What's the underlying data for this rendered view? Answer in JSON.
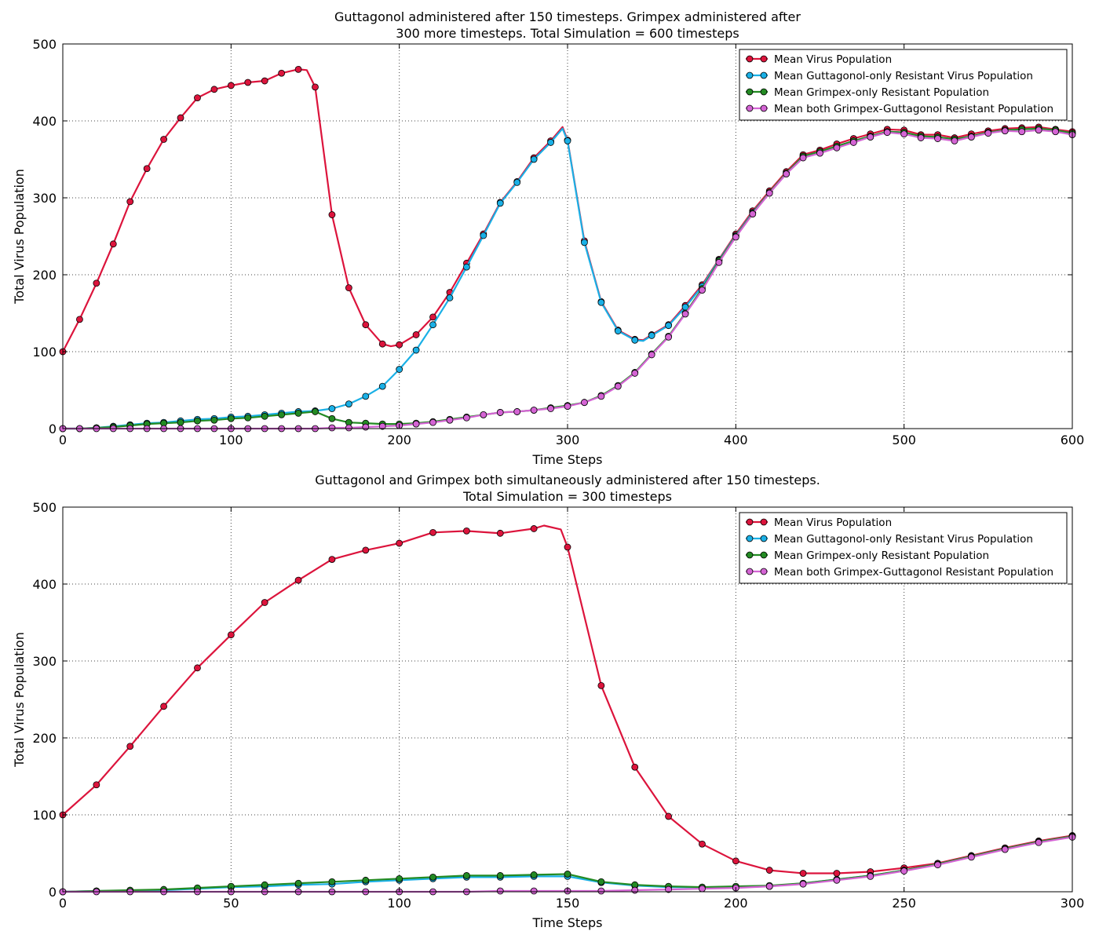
{
  "colors": {
    "virus": "#dc143c",
    "guttagonol": "#1ab0e6",
    "grimpex": "#238b23",
    "both": "#d464d4"
  },
  "chart_data": [
    {
      "type": "line",
      "title": [
        "Guttagonol administered after 150 timesteps. Grimpex administered after",
        "300 more timesteps. Total Simulation = 600 timesteps"
      ],
      "xlabel": "Time Steps",
      "ylabel": "Total Virus Population",
      "xlim": [
        0,
        600
      ],
      "ylim": [
        0,
        500
      ],
      "xticks": [
        0,
        100,
        200,
        300,
        400,
        500,
        600
      ],
      "yticks": [
        0,
        100,
        200,
        300,
        400,
        500
      ],
      "grid": true,
      "legend_position": "top-right",
      "series": [
        {
          "name": "Mean Virus Population",
          "color_key": "virus",
          "x": [
            0,
            10,
            20,
            30,
            40,
            50,
            60,
            70,
            80,
            90,
            100,
            110,
            120,
            130,
            140,
            145,
            150,
            160,
            170,
            180,
            190,
            195,
            200,
            210,
            220,
            230,
            240,
            250,
            260,
            270,
            280,
            290,
            297,
            300,
            310,
            320,
            330,
            340,
            345,
            350,
            360,
            370,
            380,
            390,
            400,
            410,
            420,
            430,
            440,
            450,
            460,
            470,
            480,
            490,
            500,
            510,
            520,
            530,
            540,
            550,
            560,
            570,
            580,
            590,
            600
          ],
          "y": [
            100,
            142,
            189,
            240,
            295,
            338,
            376,
            404,
            430,
            441,
            446,
            450,
            452,
            462,
            467,
            466,
            444,
            278,
            183,
            135,
            110,
            107,
            109,
            122,
            145,
            177,
            215,
            253,
            294,
            321,
            352,
            374,
            392,
            375,
            244,
            165,
            128,
            116,
            115,
            122,
            135,
            160,
            187,
            220,
            253,
            283,
            309,
            334,
            356,
            362,
            370,
            377,
            383,
            389,
            388,
            382,
            382,
            378,
            383,
            387,
            390,
            391,
            392,
            389,
            386
          ]
        },
        {
          "name": "Mean Guttagonol-only Resistant Virus Population",
          "color_key": "guttagonol",
          "x": [
            0,
            10,
            20,
            30,
            40,
            50,
            60,
            70,
            80,
            90,
            100,
            110,
            120,
            130,
            140,
            150,
            160,
            170,
            180,
            190,
            200,
            210,
            220,
            230,
            240,
            250,
            260,
            270,
            280,
            290,
            297,
            300,
            310,
            320,
            330,
            340,
            345,
            350,
            360,
            370,
            380,
            390,
            400,
            410,
            420,
            430,
            440,
            450,
            460,
            470,
            480,
            490,
            500,
            510,
            520,
            530,
            540,
            550,
            560,
            570,
            580,
            590,
            600
          ],
          "y": [
            0,
            0,
            1,
            3,
            5,
            7,
            8,
            10,
            12,
            13,
            15,
            16,
            18,
            20,
            22,
            23,
            26,
            32,
            42,
            55,
            77,
            102,
            135,
            170,
            210,
            251,
            293,
            320,
            350,
            372,
            390,
            374,
            242,
            164,
            127,
            115,
            114,
            121,
            134,
            158,
            185,
            219,
            251,
            281,
            307,
            332,
            354,
            360,
            367,
            374,
            380,
            386,
            385,
            380,
            379,
            376,
            380,
            385,
            388,
            389,
            390,
            388,
            384
          ]
        },
        {
          "name": "Mean Grimpex-only Resistant Population",
          "color_key": "grimpex",
          "x": [
            0,
            10,
            20,
            30,
            40,
            50,
            60,
            70,
            80,
            90,
            100,
            110,
            120,
            130,
            140,
            150,
            160,
            170,
            180,
            190,
            200,
            210,
            220,
            230,
            240,
            250,
            260,
            270,
            280,
            290,
            300,
            310,
            320,
            330,
            340,
            350,
            360,
            370,
            380,
            390,
            400,
            410,
            420,
            430,
            440,
            450,
            460,
            470,
            480,
            490,
            500,
            510,
            520,
            530,
            540,
            550,
            560,
            570,
            580,
            590,
            600
          ],
          "y": [
            0,
            0,
            1,
            2,
            4,
            6,
            7,
            8,
            10,
            11,
            13,
            14,
            16,
            18,
            20,
            22,
            13,
            8,
            7,
            6,
            6,
            7,
            9,
            12,
            15,
            18,
            21,
            22,
            24,
            27,
            30,
            34,
            43,
            56,
            73,
            97,
            120,
            150,
            182,
            218,
            250,
            280,
            307,
            332,
            354,
            360,
            367,
            374,
            380,
            386,
            385,
            380,
            379,
            376,
            380,
            385,
            388,
            389,
            390,
            388,
            384
          ]
        },
        {
          "name": "Mean both Grimpex-Guttagonol Resistant Population",
          "color_key": "both",
          "x": [
            0,
            10,
            20,
            30,
            40,
            50,
            60,
            70,
            80,
            90,
            100,
            110,
            120,
            130,
            140,
            150,
            160,
            170,
            180,
            190,
            200,
            210,
            220,
            230,
            240,
            250,
            260,
            270,
            280,
            290,
            300,
            310,
            320,
            330,
            340,
            350,
            360,
            370,
            380,
            390,
            400,
            410,
            420,
            430,
            440,
            450,
            460,
            470,
            480,
            490,
            500,
            510,
            520,
            530,
            540,
            550,
            560,
            570,
            580,
            590,
            600
          ],
          "y": [
            0,
            0,
            0,
            0,
            0,
            0,
            0,
            0,
            0,
            0,
            0,
            0,
            0,
            0,
            0,
            0,
            1,
            1,
            2,
            3,
            4,
            6,
            8,
            11,
            14,
            18,
            21,
            22,
            24,
            26,
            29,
            34,
            42,
            55,
            72,
            96,
            119,
            149,
            180,
            216,
            249,
            279,
            306,
            331,
            352,
            358,
            365,
            372,
            379,
            385,
            383,
            378,
            377,
            374,
            379,
            384,
            387,
            386,
            388,
            386,
            382
          ]
        }
      ]
    },
    {
      "type": "line",
      "title": [
        "Guttagonol and Grimpex both simultaneously administered after 150 timesteps.",
        "Total Simulation = 300 timesteps"
      ],
      "xlabel": "Time Steps",
      "ylabel": "Total Virus Population",
      "xlim": [
        0,
        300
      ],
      "ylim": [
        0,
        500
      ],
      "xticks": [
        0,
        50,
        100,
        150,
        200,
        250,
        300
      ],
      "yticks": [
        0,
        100,
        200,
        300,
        400,
        500
      ],
      "grid": true,
      "legend_position": "top-right",
      "series": [
        {
          "name": "Mean Virus Population",
          "color_key": "virus",
          "x": [
            0,
            10,
            20,
            30,
            40,
            50,
            60,
            70,
            80,
            90,
            100,
            110,
            120,
            130,
            140,
            143,
            148,
            150,
            160,
            170,
            180,
            190,
            200,
            210,
            220,
            230,
            240,
            250,
            260,
            270,
            280,
            290,
            300
          ],
          "y": [
            100,
            139,
            189,
            241,
            291,
            334,
            376,
            405,
            432,
            444,
            453,
            467,
            469,
            466,
            472,
            476,
            471,
            448,
            268,
            162,
            98,
            62,
            40,
            28,
            24,
            24,
            26,
            31,
            37,
            47,
            57,
            66,
            73
          ]
        },
        {
          "name": "Mean Guttagonol-only Resistant Virus Population",
          "color_key": "guttagonol",
          "x": [
            0,
            10,
            20,
            30,
            40,
            50,
            60,
            70,
            80,
            90,
            100,
            110,
            120,
            130,
            140,
            150,
            160,
            170,
            180,
            190,
            200,
            210,
            220,
            230,
            240,
            250,
            260,
            270,
            280,
            290,
            300
          ],
          "y": [
            0,
            1,
            1,
            2,
            4,
            6,
            7,
            9,
            10,
            13,
            15,
            17,
            19,
            19,
            20,
            20,
            12,
            8,
            6,
            6,
            6,
            7,
            11,
            16,
            21,
            28,
            36,
            46,
            56,
            65,
            72
          ]
        },
        {
          "name": "Mean Grimpex-only Resistant Population",
          "color_key": "grimpex",
          "x": [
            0,
            10,
            20,
            30,
            40,
            50,
            60,
            70,
            80,
            90,
            100,
            110,
            120,
            130,
            140,
            150,
            160,
            170,
            180,
            190,
            200,
            210,
            220,
            230,
            240,
            250,
            260,
            270,
            280,
            290,
            300
          ],
          "y": [
            0,
            1,
            2,
            3,
            5,
            7,
            9,
            11,
            13,
            15,
            17,
            19,
            21,
            21,
            22,
            23,
            13,
            9,
            7,
            6,
            7,
            8,
            11,
            16,
            21,
            28,
            36,
            46,
            56,
            65,
            72
          ]
        },
        {
          "name": "Mean both Grimpex-Guttagonol Resistant Population",
          "color_key": "both",
          "x": [
            0,
            10,
            20,
            30,
            40,
            50,
            60,
            70,
            80,
            90,
            100,
            110,
            120,
            130,
            140,
            150,
            160,
            170,
            180,
            190,
            200,
            210,
            220,
            230,
            240,
            250,
            260,
            270,
            280,
            290,
            300
          ],
          "y": [
            0,
            0,
            0,
            0,
            0,
            0,
            0,
            0,
            0,
            0,
            0,
            0,
            0,
            1,
            1,
            1,
            1,
            2,
            3,
            4,
            5,
            7,
            10,
            15,
            20,
            27,
            35,
            45,
            55,
            64,
            71
          ]
        }
      ]
    }
  ]
}
